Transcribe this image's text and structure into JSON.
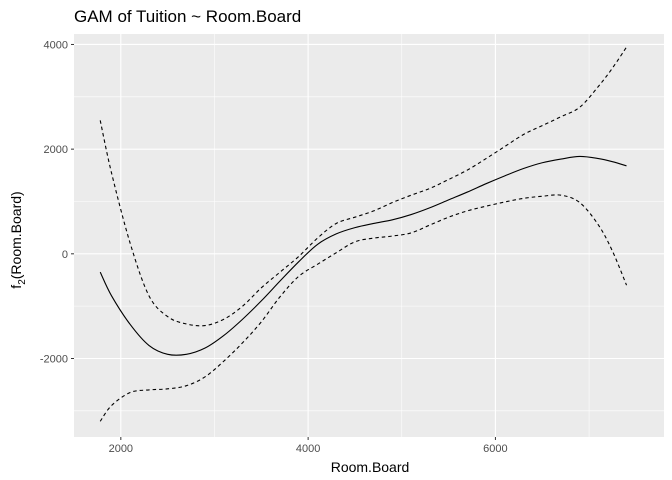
{
  "chart_data": {
    "type": "line",
    "title": "GAM of Tuition ~ Room.Board",
    "xlabel": "Room.Board",
    "ylabel_main": "f",
    "ylabel_sub": "2",
    "ylabel_rest": "(Room.Board)",
    "xlim": [
      1500,
      7800
    ],
    "ylim": [
      -3500,
      4200
    ],
    "x_ticks": [
      2000,
      4000,
      6000
    ],
    "x_tick_labels": [
      "2000",
      "4000",
      "6000"
    ],
    "y_ticks": [
      -2000,
      0,
      2000,
      4000
    ],
    "y_tick_labels": [
      "-2000",
      "0",
      "2000",
      "4000"
    ],
    "grid": true,
    "series": [
      {
        "role": "fit",
        "style": "solid",
        "x": [
          1780,
          1900,
          2100,
          2300,
          2500,
          2700,
          2900,
          3100,
          3300,
          3500,
          3700,
          3900,
          4100,
          4300,
          4500,
          4700,
          4900,
          5100,
          5300,
          5500,
          5700,
          5900,
          6100,
          6300,
          6500,
          6700,
          6900,
          7100,
          7250,
          7400
        ],
        "y": [
          -350,
          -800,
          -1350,
          -1750,
          -1920,
          -1920,
          -1800,
          -1560,
          -1250,
          -900,
          -520,
          -150,
          180,
          380,
          500,
          580,
          650,
          750,
          880,
          1030,
          1180,
          1340,
          1490,
          1630,
          1740,
          1810,
          1860,
          1820,
          1760,
          1680
        ]
      },
      {
        "role": "upper",
        "style": "dashed",
        "x": [
          1780,
          1900,
          2100,
          2300,
          2500,
          2700,
          2900,
          3100,
          3300,
          3500,
          3700,
          3900,
          4100,
          4300,
          4500,
          4700,
          4900,
          5100,
          5300,
          5500,
          5700,
          5900,
          6100,
          6300,
          6500,
          6700,
          6900,
          7100,
          7250,
          7400
        ],
        "y": [
          2550,
          1550,
          200,
          -800,
          -1200,
          -1340,
          -1370,
          -1250,
          -1000,
          -650,
          -350,
          -50,
          300,
          580,
          700,
          820,
          980,
          1120,
          1250,
          1420,
          1600,
          1820,
          2050,
          2280,
          2450,
          2620,
          2800,
          3200,
          3550,
          3950
        ]
      },
      {
        "role": "lower",
        "style": "dashed",
        "x": [
          1780,
          1900,
          2100,
          2300,
          2500,
          2700,
          2900,
          3100,
          3300,
          3500,
          3700,
          3900,
          4100,
          4300,
          4500,
          4700,
          4900,
          5100,
          5300,
          5500,
          5700,
          5900,
          6100,
          6300,
          6500,
          6700,
          6900,
          7100,
          7250,
          7400
        ],
        "y": [
          -3200,
          -2900,
          -2650,
          -2600,
          -2580,
          -2520,
          -2350,
          -2050,
          -1700,
          -1300,
          -820,
          -430,
          -200,
          20,
          230,
          300,
          340,
          400,
          550,
          700,
          820,
          910,
          990,
          1060,
          1100,
          1120,
          980,
          550,
          50,
          -600
        ]
      }
    ]
  }
}
